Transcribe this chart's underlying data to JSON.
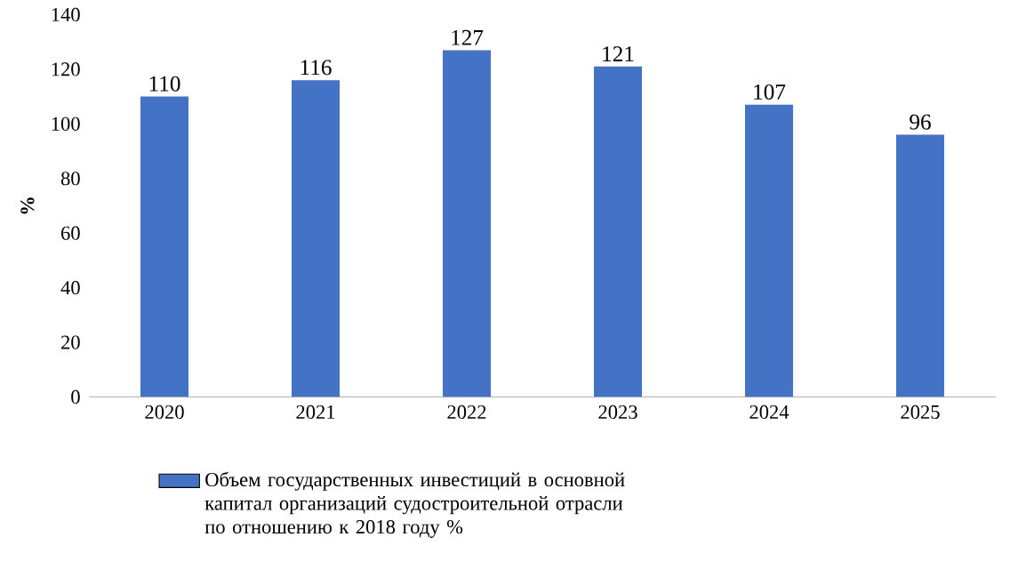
{
  "chart_data": {
    "type": "bar",
    "ylabel": "%",
    "categories": [
      "2020",
      "2021",
      "2022",
      "2023",
      "2024",
      "2025"
    ],
    "series": [
      {
        "name": "Объем государственных инвестиций в основной капитал организаций судостроительной отрасли по отношению к 2018 году %",
        "color": "#4472c4",
        "values": [
          110,
          116,
          127,
          121,
          107,
          96
        ]
      }
    ],
    "ylim": [
      0,
      140
    ],
    "yticks": [
      0,
      20,
      40,
      60,
      80,
      100,
      120,
      140
    ],
    "data_labels": true,
    "legend": "bottom",
    "grid": false
  }
}
